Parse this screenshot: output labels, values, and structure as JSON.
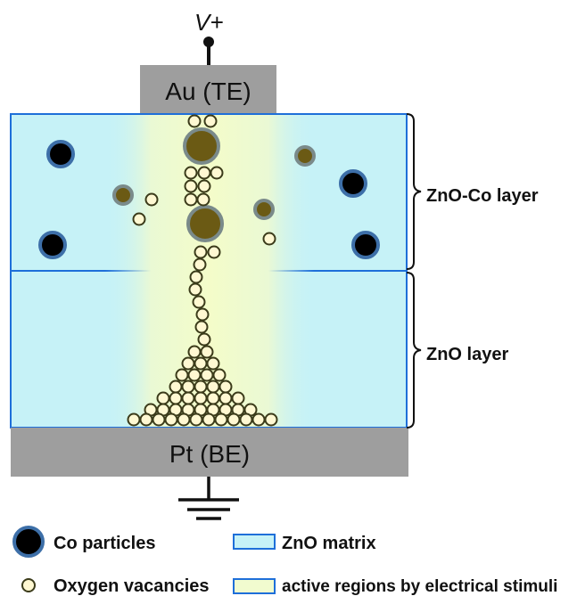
{
  "diagram": {
    "voltage_label": "V+",
    "top_electrode_label": "Au (TE)",
    "bottom_electrode_label": "Pt (BE)",
    "upper_layer_label": "ZnO-Co layer",
    "lower_layer_label": "ZnO layer"
  },
  "legend": {
    "co_particles": "Co particles",
    "zno_matrix": "ZnO matrix",
    "oxygen_vacancies": "Oxygen vacancies",
    "active_regions": "active regions by electrical stimuli"
  },
  "colors": {
    "matrix_fill": "#c6f2f7",
    "matrix_border": "#1e6fd9",
    "active_fill": "#f1fbcf",
    "electrode": "#9e9e9e",
    "co_dark": "#000000",
    "co_ring": "#3d6fa8",
    "co_olive": "#6b5a14",
    "vacancy_fill": "#fff8d2",
    "vacancy_stroke": "#3b3b1a"
  },
  "icons": [
    "ground-icon",
    "voltage-terminal-icon",
    "brace-icon"
  ]
}
